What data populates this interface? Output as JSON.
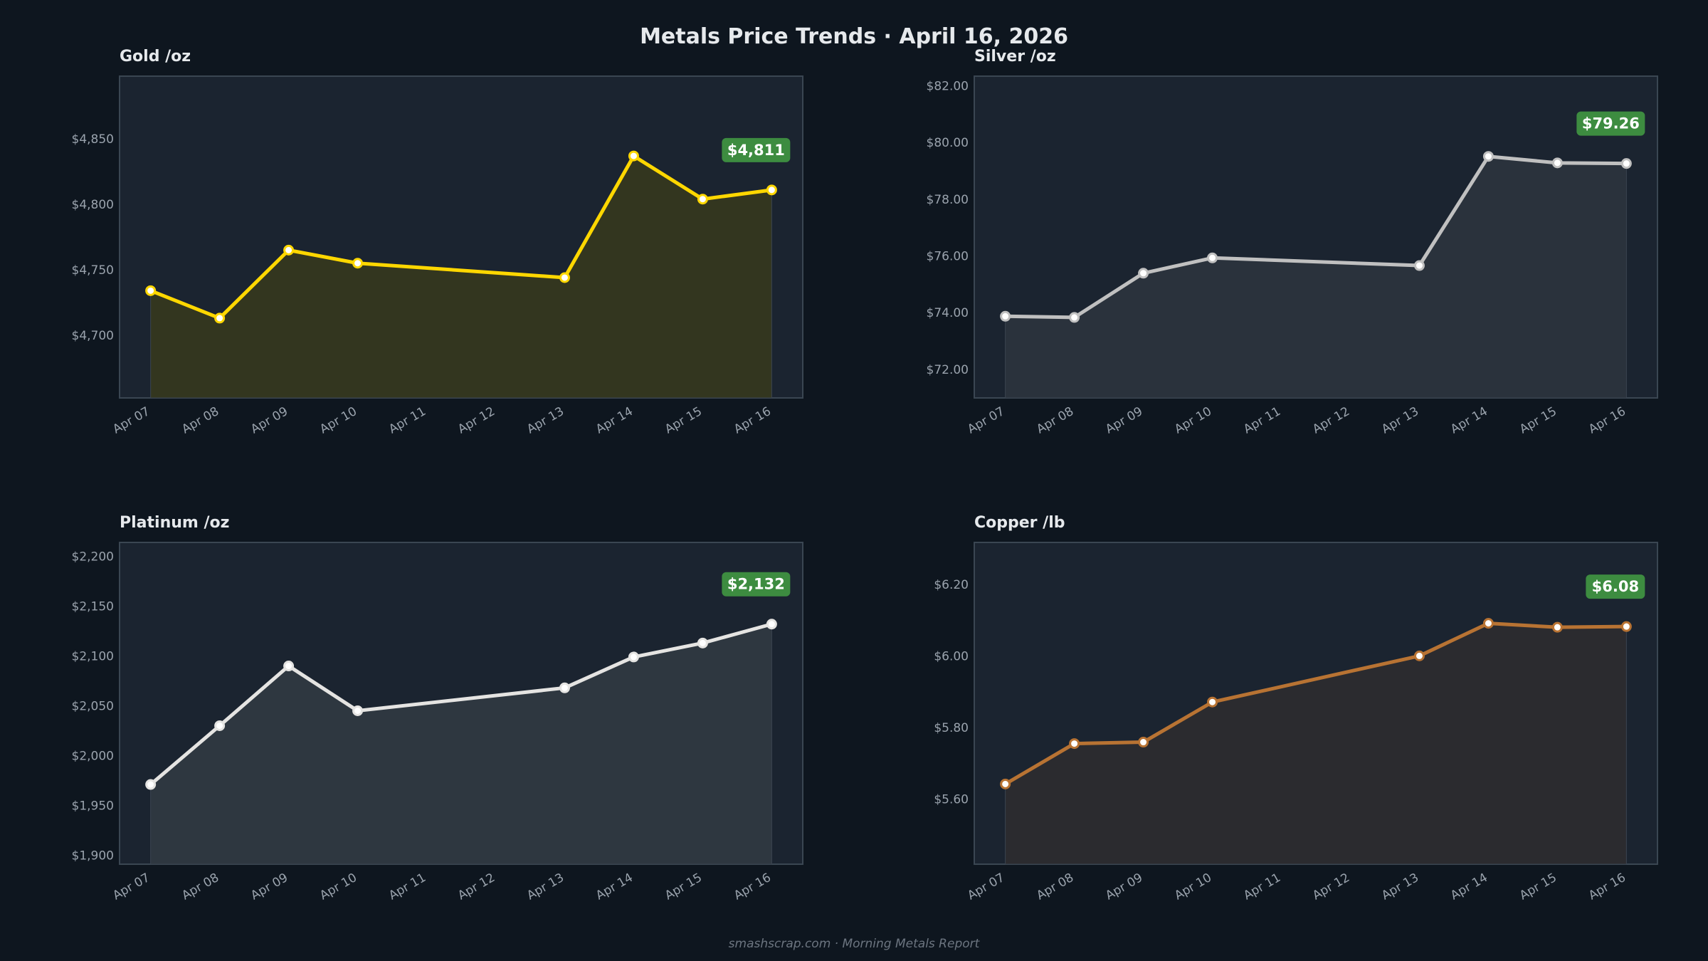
{
  "title": "Metals Price Trends  ·  April 16, 2026",
  "footer": "smashscrap.com  ·  Morning Metals Report",
  "chart_data": [
    {
      "type": "area",
      "title": "Gold  /oz",
      "color": "#ffd700",
      "fill": "#33361f",
      "x_ticks": [
        "Apr 07",
        "Apr 08",
        "Apr 09",
        "Apr 10",
        "Apr 11",
        "Apr 12",
        "Apr 13",
        "Apr 14",
        "Apr 15",
        "Apr 16"
      ],
      "x": [
        "2026-04-07",
        "2026-04-08",
        "2026-04-09",
        "2026-04-10",
        "2026-04-13",
        "2026-04-14",
        "2026-04-15",
        "2026-04-16"
      ],
      "values": [
        4734,
        4713,
        4765,
        4755,
        4744,
        4837,
        4804,
        4811
      ],
      "y_ticks": [
        4700,
        4750,
        4800,
        4850
      ],
      "y_tick_labels": [
        "$4,700",
        "$4,750",
        "$4,800",
        "$4,850"
      ],
      "ylim": [
        4652,
        4898
      ],
      "last_label": "$4,811",
      "grid": false
    },
    {
      "type": "area",
      "title": "Silver  /oz",
      "color": "#c0c0c0",
      "fill": "#2a323c",
      "x_ticks": [
        "Apr 07",
        "Apr 08",
        "Apr 09",
        "Apr 10",
        "Apr 11",
        "Apr 12",
        "Apr 13",
        "Apr 14",
        "Apr 15",
        "Apr 16"
      ],
      "x": [
        "2026-04-07",
        "2026-04-08",
        "2026-04-09",
        "2026-04-10",
        "2026-04-13",
        "2026-04-14",
        "2026-04-15",
        "2026-04-16"
      ],
      "values": [
        73.87,
        73.83,
        75.39,
        75.93,
        75.66,
        79.51,
        79.28,
        79.26
      ],
      "y_ticks": [
        72,
        74,
        76,
        78,
        80,
        82
      ],
      "y_tick_labels": [
        "$72.00",
        "$74.00",
        "$76.00",
        "$78.00",
        "$80.00",
        "$82.00"
      ],
      "ylim": [
        70.99,
        82.34
      ],
      "last_label": "$79.26",
      "grid": false
    },
    {
      "type": "area",
      "title": "Platinum  /oz",
      "color": "#e5e4e2",
      "fill": "#2e3740",
      "x_ticks": [
        "Apr 07",
        "Apr 08",
        "Apr 09",
        "Apr 10",
        "Apr 11",
        "Apr 12",
        "Apr 13",
        "Apr 14",
        "Apr 15",
        "Apr 16"
      ],
      "x": [
        "2026-04-07",
        "2026-04-08",
        "2026-04-09",
        "2026-04-10",
        "2026-04-13",
        "2026-04-14",
        "2026-04-15",
        "2026-04-16"
      ],
      "values": [
        1971,
        2030,
        2090,
        2045,
        2068,
        2099,
        2113,
        2132
      ],
      "y_ticks": [
        1900,
        1950,
        2000,
        2050,
        2100,
        2150,
        2200
      ],
      "y_tick_labels": [
        "$1,900",
        "$1,950",
        "$2,000",
        "$2,050",
        "$2,100",
        "$2,150",
        "$2,200"
      ],
      "ylim": [
        1891,
        2214
      ],
      "last_label": "$2,132",
      "grid": false
    },
    {
      "type": "area",
      "title": "Copper  /lb",
      "color": "#b87333",
      "fill": "#2b2b2f",
      "x_ticks": [
        "Apr 07",
        "Apr 08",
        "Apr 09",
        "Apr 10",
        "Apr 11",
        "Apr 12",
        "Apr 13",
        "Apr 14",
        "Apr 15",
        "Apr 16"
      ],
      "x": [
        "2026-04-07",
        "2026-04-08",
        "2026-04-09",
        "2026-04-10",
        "2026-04-13",
        "2026-04-14",
        "2026-04-15",
        "2026-04-16"
      ],
      "values": [
        5.642,
        5.755,
        5.759,
        5.871,
        6.0,
        6.091,
        6.08,
        6.082
      ],
      "y_ticks": [
        5.6,
        5.8,
        6.0,
        6.2
      ],
      "y_tick_labels": [
        "$5.60",
        "$5.80",
        "$6.00",
        "$6.20"
      ],
      "ylim": [
        5.418,
        6.317
      ],
      "last_label": "$6.08",
      "grid": false
    }
  ],
  "colors": {
    "background": "#0e161f",
    "plot_bg": "#1b2430",
    "badge": "#3d8c40",
    "tick_text": "#9aa3ad"
  }
}
